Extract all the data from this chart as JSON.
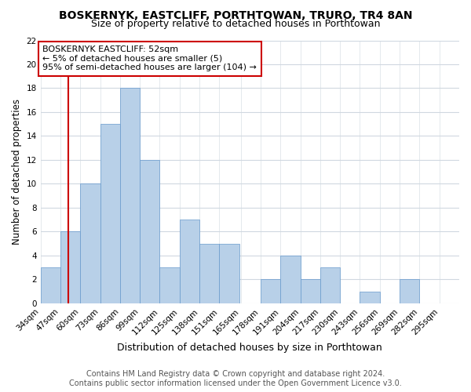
{
  "title": "BOSKERNYK, EASTCLIFF, PORTHTOWAN, TRURO, TR4 8AN",
  "subtitle": "Size of property relative to detached houses in Porthtowan",
  "xlabel": "Distribution of detached houses by size in Porthtowan",
  "ylabel": "Number of detached properties",
  "footer_line1": "Contains HM Land Registry data © Crown copyright and database right 2024.",
  "footer_line2": "Contains public sector information licensed under the Open Government Licence v3.0.",
  "bin_labels": [
    "34sqm",
    "47sqm",
    "60sqm",
    "73sqm",
    "86sqm",
    "99sqm",
    "112sqm",
    "125sqm",
    "138sqm",
    "151sqm",
    "165sqm",
    "178sqm",
    "191sqm",
    "204sqm",
    "217sqm",
    "230sqm",
    "243sqm",
    "256sqm",
    "269sqm",
    "282sqm",
    "295sqm"
  ],
  "bin_edges": [
    34,
    47,
    60,
    73,
    86,
    99,
    112,
    125,
    138,
    151,
    165,
    178,
    191,
    204,
    217,
    230,
    243,
    256,
    269,
    282,
    295
  ],
  "counts": [
    3,
    6,
    10,
    15,
    18,
    12,
    3,
    7,
    5,
    5,
    0,
    2,
    4,
    2,
    3,
    0,
    1,
    0,
    2,
    0
  ],
  "bar_color": "#b8d0e8",
  "bar_edge_color": "#6699cc",
  "vline_x": 52,
  "vline_color": "#cc0000",
  "annotation_line1": "BOSKERNYK EASTCLIFF: 52sqm",
  "annotation_line2": "← 5% of detached houses are smaller (5)",
  "annotation_line3": "95% of semi-detached houses are larger (104) →",
  "annotation_box_edge_color": "#cc0000",
  "ylim": [
    0,
    22
  ],
  "yticks": [
    0,
    2,
    4,
    6,
    8,
    10,
    12,
    14,
    16,
    18,
    20,
    22
  ],
  "title_fontsize": 10,
  "subtitle_fontsize": 9,
  "xlabel_fontsize": 9,
  "ylabel_fontsize": 8.5,
  "tick_fontsize": 7.5,
  "annotation_fontsize": 8,
  "footer_fontsize": 7,
  "background_color": "#ffffff",
  "grid_color": "#d0d8e0"
}
